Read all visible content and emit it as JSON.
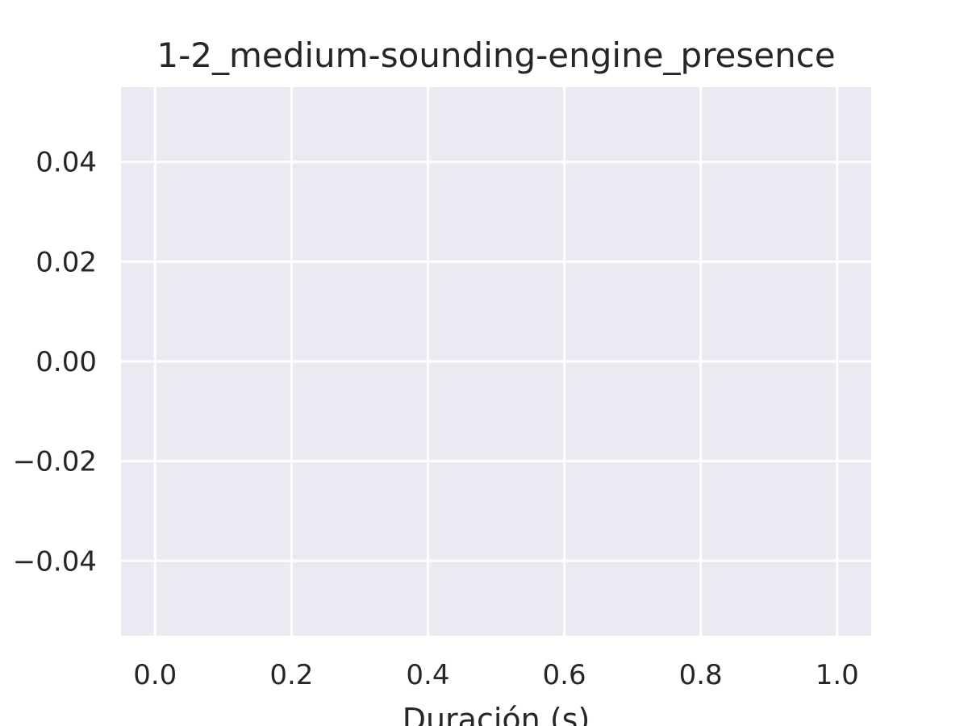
{
  "chart_data": {
    "type": "line",
    "title": "1-2_medium-sounding-engine_presence",
    "xlabel": "Duración (s)",
    "ylabel": "",
    "xlim": [
      -0.05,
      1.05
    ],
    "ylim": [
      -0.055,
      0.055
    ],
    "x_ticks": [
      0.0,
      0.2,
      0.4,
      0.6,
      0.8,
      1.0
    ],
    "x_tick_labels": [
      "0.0",
      "0.2",
      "0.4",
      "0.6",
      "0.8",
      "1.0"
    ],
    "y_ticks": [
      0.04,
      0.02,
      0.0,
      -0.02,
      -0.04
    ],
    "y_tick_labels": [
      "0.04",
      "0.02",
      "0.00",
      "−0.02",
      "−0.04"
    ],
    "series": [],
    "grid": true,
    "colors": {
      "background": "#eaeaf2",
      "grid": "#ffffff",
      "text": "#262626"
    }
  }
}
